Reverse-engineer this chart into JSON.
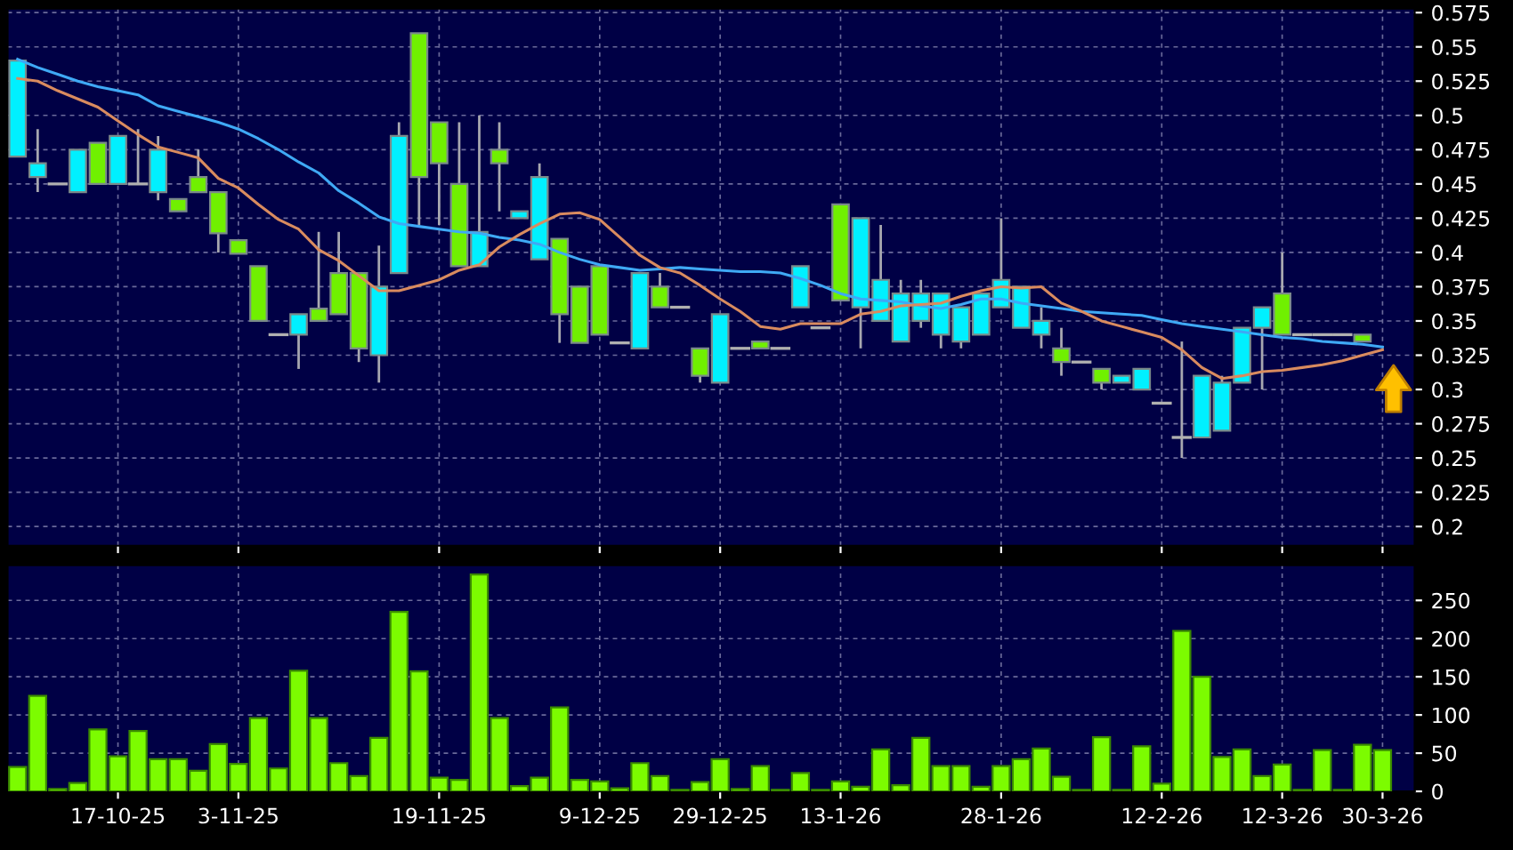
{
  "chart_data": [
    {
      "type": "candlestick",
      "categories": [
        null,
        null,
        null,
        null,
        null,
        null,
        null,
        null,
        null,
        null,
        null,
        null,
        null,
        null,
        null,
        null,
        null,
        null,
        null,
        null,
        null,
        null,
        null,
        null,
        null,
        null,
        null,
        null,
        null,
        null,
        null,
        null,
        null,
        null,
        null,
        null,
        null,
        null,
        null,
        null,
        null,
        null,
        null,
        null,
        null,
        null,
        null,
        null,
        null,
        null,
        null,
        null,
        null,
        null,
        null,
        null,
        null,
        null,
        null,
        null,
        null,
        null,
        null,
        null,
        null,
        null,
        null,
        null,
        null
      ],
      "ohlc": [
        [
          0.47,
          0.54,
          0.47,
          0.54
        ],
        [
          0.455,
          0.49,
          0.444,
          0.465
        ],
        [
          0.45,
          0.45,
          0.45,
          0.45
        ],
        [
          0.444,
          0.475,
          0.444,
          0.475
        ],
        [
          0.48,
          0.48,
          0.45,
          0.45
        ],
        [
          0.45,
          0.485,
          0.45,
          0.485
        ],
        [
          0.45,
          0.49,
          0.45,
          0.45
        ],
        [
          0.444,
          0.485,
          0.438,
          0.475
        ],
        [
          0.439,
          0.439,
          0.43,
          0.43
        ],
        [
          0.455,
          0.475,
          0.444,
          0.444
        ],
        [
          0.444,
          0.444,
          0.4,
          0.414
        ],
        [
          0.409,
          0.409,
          0.399,
          0.399
        ],
        [
          0.39,
          0.39,
          0.35,
          0.35
        ],
        [
          0.34,
          0.34,
          0.34,
          0.34
        ],
        [
          0.34,
          0.355,
          0.315,
          0.355
        ],
        [
          0.359,
          0.415,
          0.35,
          0.35
        ],
        [
          0.385,
          0.415,
          0.355,
          0.355
        ],
        [
          0.385,
          0.385,
          0.32,
          0.33
        ],
        [
          0.325,
          0.405,
          0.305,
          0.375
        ],
        [
          0.385,
          0.495,
          0.385,
          0.485
        ],
        [
          0.56,
          0.56,
          0.42,
          0.455
        ],
        [
          0.495,
          0.495,
          0.42,
          0.465
        ],
        [
          0.45,
          0.495,
          0.39,
          0.39
        ],
        [
          0.39,
          0.5,
          0.39,
          0.415
        ],
        [
          0.475,
          0.495,
          0.43,
          0.465
        ],
        [
          0.425,
          0.43,
          0.425,
          0.43
        ],
        [
          0.395,
          0.465,
          0.395,
          0.455
        ],
        [
          0.41,
          0.41,
          0.334,
          0.355
        ],
        [
          0.375,
          0.375,
          0.334,
          0.334
        ],
        [
          0.39,
          0.39,
          0.34,
          0.34
        ],
        [
          0.334,
          0.334,
          0.334,
          0.334
        ],
        [
          0.33,
          0.385,
          0.33,
          0.385
        ],
        [
          0.375,
          0.385,
          0.36,
          0.36
        ],
        [
          0.36,
          0.36,
          0.36,
          0.36
        ],
        [
          0.33,
          0.33,
          0.305,
          0.31
        ],
        [
          0.305,
          0.355,
          0.305,
          0.355
        ],
        [
          0.33,
          0.33,
          0.33,
          0.33
        ],
        [
          0.335,
          0.335,
          0.33,
          0.33
        ],
        [
          0.33,
          0.33,
          0.33,
          0.33
        ],
        [
          0.36,
          0.39,
          0.36,
          0.39
        ],
        [
          0.345,
          0.345,
          0.345,
          0.345
        ],
        [
          0.435,
          0.435,
          0.365,
          0.365
        ],
        [
          0.36,
          0.425,
          0.33,
          0.425
        ],
        [
          0.35,
          0.42,
          0.35,
          0.38
        ],
        [
          0.335,
          0.38,
          0.335,
          0.37
        ],
        [
          0.35,
          0.38,
          0.345,
          0.37
        ],
        [
          0.34,
          0.37,
          0.33,
          0.37
        ],
        [
          0.335,
          0.36,
          0.33,
          0.36
        ],
        [
          0.34,
          0.37,
          0.34,
          0.37
        ],
        [
          0.36,
          0.425,
          0.36,
          0.38
        ],
        [
          0.345,
          0.375,
          0.345,
          0.375
        ],
        [
          0.34,
          0.36,
          0.33,
          0.35
        ],
        [
          0.33,
          0.345,
          0.31,
          0.32
        ],
        [
          0.32,
          0.32,
          0.32,
          0.32
        ],
        [
          0.315,
          0.315,
          0.3,
          0.305
        ],
        [
          0.305,
          0.31,
          0.305,
          0.31
        ],
        [
          0.3,
          0.315,
          0.3,
          0.315
        ],
        [
          0.29,
          0.29,
          0.29,
          0.29
        ],
        [
          0.265,
          0.335,
          0.25,
          0.265
        ],
        [
          0.265,
          0.31,
          0.265,
          0.31
        ],
        [
          0.27,
          0.31,
          0.27,
          0.305
        ],
        [
          0.305,
          0.345,
          0.305,
          0.345
        ],
        [
          0.345,
          0.36,
          0.3,
          0.36
        ],
        [
          0.37,
          0.4,
          0.34,
          0.34
        ],
        [
          0.34,
          0.34,
          0.34,
          0.34
        ],
        [
          0.34,
          0.34,
          0.34,
          0.34
        ],
        [
          0.34,
          0.34,
          0.34,
          0.34
        ],
        [
          0.34,
          0.34,
          0.335,
          0.335
        ],
        null
      ],
      "colors": [
        "#00f0ff",
        "#00f0ff",
        "#b0b0b0",
        "#00f0ff",
        "#70f000",
        "#00f0ff",
        "#b0b0b0",
        "#00f0ff",
        "#70f000",
        "#70f000",
        "#70f000",
        "#70f000",
        "#70f000",
        "#b0b0b0",
        "#00f0ff",
        "#70f000",
        "#70f000",
        "#70f000",
        "#00f0ff",
        "#00f0ff",
        "#70f000",
        "#70f000",
        "#70f000",
        "#00f0ff",
        "#70f000",
        "#00f0ff",
        "#00f0ff",
        "#70f000",
        "#70f000",
        "#70f000",
        "#b0b0b0",
        "#00f0ff",
        "#70f000",
        "#b0b0b0",
        "#70f000",
        "#00f0ff",
        "#b0b0b0",
        "#70f000",
        "#b0b0b0",
        "#00f0ff",
        "#b0b0b0",
        "#70f000",
        "#00f0ff",
        "#00f0ff",
        "#00f0ff",
        "#00f0ff",
        "#00f0ff",
        "#00f0ff",
        "#00f0ff",
        "#00f0ff",
        "#00f0ff",
        "#00f0ff",
        "#70f000",
        "#b0b0b0",
        "#70f000",
        "#00f0ff",
        "#00f0ff",
        "#b0b0b0",
        "#b0b0b0",
        "#00f0ff",
        "#00f0ff",
        "#00f0ff",
        "#00f0ff",
        "#70f000",
        "#b0b0b0",
        "#b0b0b0",
        "#b0b0b0",
        "#70f000",
        null
      ],
      "series": [
        {
          "type": "line",
          "color": "#3fa9f5",
          "values": [
            0.541,
            0.535,
            0.53,
            0.525,
            0.521,
            0.518,
            0.515,
            0.507,
            0.503,
            0.499,
            0.495,
            0.49,
            0.483,
            0.475,
            0.466,
            0.458,
            0.445,
            0.436,
            0.426,
            0.421,
            0.419,
            0.417,
            0.415,
            0.414,
            0.411,
            0.409,
            0.406,
            0.4,
            0.395,
            0.391,
            0.389,
            0.387,
            0.388,
            0.389,
            0.388,
            0.387,
            0.386,
            0.386,
            0.385,
            0.381,
            0.376,
            0.37,
            0.366,
            0.365,
            0.364,
            0.361,
            0.359,
            0.362,
            0.366,
            0.366,
            0.363,
            0.361,
            0.359,
            0.357,
            0.356,
            0.355,
            0.354,
            0.351,
            0.348,
            0.346,
            0.344,
            0.342,
            0.34,
            0.338,
            0.337,
            0.335,
            0.334,
            0.333,
            0.331
          ]
        },
        {
          "type": "line",
          "color": "#d98b5f",
          "values": [
            0.527,
            0.525,
            0.518,
            0.512,
            0.506,
            0.496,
            0.486,
            0.477,
            0.473,
            0.469,
            0.454,
            0.447,
            0.435,
            0.424,
            0.417,
            0.402,
            0.394,
            0.383,
            0.372,
            0.372,
            0.376,
            0.38,
            0.387,
            0.391,
            0.404,
            0.413,
            0.421,
            0.428,
            0.429,
            0.424,
            0.411,
            0.398,
            0.389,
            0.385,
            0.376,
            0.366,
            0.357,
            0.346,
            0.344,
            0.348,
            0.348,
            0.348,
            0.355,
            0.357,
            0.361,
            0.362,
            0.363,
            0.368,
            0.372,
            0.375,
            0.374,
            0.375,
            0.363,
            0.357,
            0.35,
            0.346,
            0.342,
            0.338,
            0.329,
            0.316,
            0.308,
            0.31,
            0.313,
            0.314,
            0.316,
            0.318,
            0.321,
            0.325,
            0.329
          ]
        }
      ],
      "ylim": [
        0.186,
        0.578
      ],
      "yticks": [
        0.2,
        0.225,
        0.25,
        0.275,
        0.3,
        0.325,
        0.35,
        0.375,
        0.4,
        0.425,
        0.45,
        0.475,
        0.5,
        0.525,
        0.55,
        0.575
      ],
      "grid": true,
      "tick_labels": "y"
    },
    {
      "type": "bar",
      "categories": [
        null,
        null,
        null,
        null,
        null,
        "17-10-25",
        null,
        null,
        null,
        null,
        null,
        "3-11-25",
        null,
        null,
        null,
        null,
        null,
        null,
        null,
        null,
        null,
        "19-11-25",
        null,
        null,
        null,
        null,
        null,
        null,
        null,
        "9-12-25",
        null,
        null,
        null,
        null,
        null,
        "29-12-25",
        null,
        null,
        null,
        null,
        null,
        "13-1-26",
        null,
        null,
        null,
        null,
        null,
        null,
        null,
        "28-1-26",
        null,
        null,
        null,
        null,
        null,
        null,
        null,
        "12-2-26",
        null,
        null,
        null,
        null,
        null,
        "12-3-26",
        null,
        null,
        null,
        null,
        "30-3-26"
      ],
      "values": [
        32,
        125,
        3,
        11,
        81,
        46,
        79,
        42,
        42,
        27,
        62,
        36,
        96,
        30,
        158,
        96,
        37,
        20,
        70,
        235,
        157,
        18,
        15,
        284,
        96,
        7,
        18,
        110,
        15,
        13,
        4,
        37,
        20,
        2,
        12,
        42,
        3,
        33,
        2,
        24,
        2,
        13,
        6,
        55,
        8,
        70,
        33,
        33,
        6,
        33,
        42,
        56,
        19,
        2,
        71,
        2,
        59,
        10,
        210,
        150,
        45,
        55,
        20,
        35,
        2,
        54,
        2,
        61,
        54
      ],
      "color": "#7cfc00",
      "ylim": [
        0,
        296
      ],
      "yticks": [
        0,
        50,
        100,
        150,
        200,
        250
      ],
      "grid": true
    }
  ]
}
